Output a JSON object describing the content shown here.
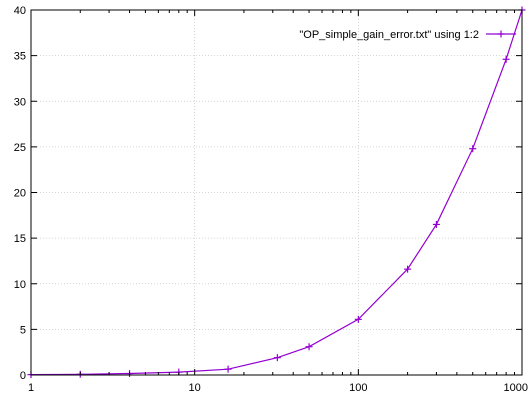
{
  "chart_data": {
    "type": "line",
    "x_scale": "log",
    "xlim": [
      1,
      1000
    ],
    "ylim": [
      0,
      40
    ],
    "grid": true,
    "legend_position": "top-right",
    "x_ticks": [
      {
        "value": 1,
        "label": "1"
      },
      {
        "value": 10,
        "label": "10"
      },
      {
        "value": 100,
        "label": "100"
      },
      {
        "value": 1000,
        "label": "1000"
      }
    ],
    "y_ticks": [
      {
        "value": 0,
        "label": "0"
      },
      {
        "value": 5,
        "label": "5"
      },
      {
        "value": 10,
        "label": "10"
      },
      {
        "value": 15,
        "label": "15"
      },
      {
        "value": 20,
        "label": "20"
      },
      {
        "value": 25,
        "label": "25"
      },
      {
        "value": 30,
        "label": "30"
      },
      {
        "value": 35,
        "label": "35"
      },
      {
        "value": 40,
        "label": "40"
      }
    ],
    "series": [
      {
        "name": "\"OP_simple_gain_error.txt\" using 1:2",
        "color": "#9400d3",
        "marker": "plus",
        "x": [
          1,
          2,
          4,
          8,
          16,
          32,
          50,
          100,
          200,
          300,
          500,
          800,
          1000
        ],
        "y": [
          0.04,
          0.08,
          0.16,
          0.32,
          0.64,
          1.9,
          3.1,
          6.1,
          11.6,
          16.5,
          24.8,
          34.6,
          40
        ]
      }
    ]
  }
}
